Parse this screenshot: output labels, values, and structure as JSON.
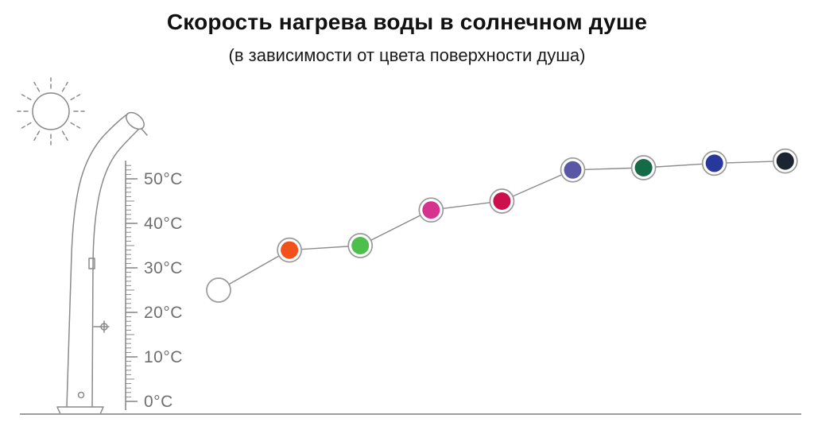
{
  "title": "Скорость нагрева воды в солнечном душе",
  "subtitle": "(в зависимости от цвета поверхности душа)",
  "icons": [
    "sun-icon",
    "solar-shower-icon",
    "temperature-scale"
  ],
  "chart_data": {
    "type": "scatter",
    "title": "Скорость нагрева воды в солнечном душе",
    "subtitle": "(в зависимости от цвета поверхности душа)",
    "xlabel": "",
    "ylabel": "",
    "ylim": [
      0,
      55
    ],
    "axis_tick_labels": [
      "0°C",
      "10°C",
      "20°C",
      "30°C",
      "40°C",
      "50°C"
    ],
    "grid": false,
    "legend": "none",
    "line_color": "#8c8c8c",
    "marker_ring_color": "#9a9a9a",
    "points": [
      {
        "surface_color_name": "white",
        "color": "#ffffff",
        "temp_c": 25
      },
      {
        "surface_color_name": "orange",
        "color": "#f3511c",
        "temp_c": 34
      },
      {
        "surface_color_name": "green",
        "color": "#4dbf4d",
        "temp_c": 35
      },
      {
        "surface_color_name": "magenta",
        "color": "#d6338f",
        "temp_c": 43
      },
      {
        "surface_color_name": "crimson",
        "color": "#ce0f4d",
        "temp_c": 45
      },
      {
        "surface_color_name": "violet",
        "color": "#5a58a5",
        "temp_c": 52
      },
      {
        "surface_color_name": "dark-green",
        "color": "#166b47",
        "temp_c": 52.5
      },
      {
        "surface_color_name": "blue",
        "color": "#27379b",
        "temp_c": 53.5
      },
      {
        "surface_color_name": "dark-navy",
        "color": "#1a2531",
        "temp_c": 54
      }
    ]
  }
}
